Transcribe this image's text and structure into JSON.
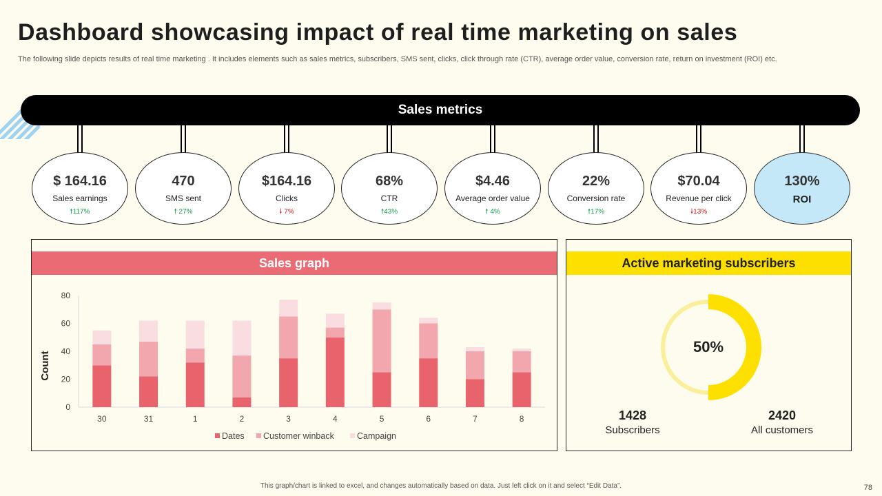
{
  "page": {
    "title": "Dashboard showcasing impact of real time marketing on sales",
    "subtitle": "The following slide depicts results of real time marketing . It includes elements such as sales metrics, subscribers, SMS sent, clicks, click through rate (CTR), average order value, conversion rate, return on investment (ROI) etc.",
    "footer": "This graph/chart is linked to excel, and changes automatically based on data. Just left click on it and select “Edit Data”.",
    "page_number": "78"
  },
  "metrics_header": "Sales metrics",
  "metrics": [
    {
      "value": "$ 164.16",
      "label": "Sales earnings",
      "change": "117%",
      "direction": "up"
    },
    {
      "value": "470",
      "label": "SMS sent",
      "change": "27%",
      "direction": "up"
    },
    {
      "value": "$164.16",
      "label": "Clicks",
      "change": "7%",
      "direction": "down"
    },
    {
      "value": "68%",
      "label": "CTR",
      "change": "43%",
      "direction": "up"
    },
    {
      "value": "$4.46",
      "label": "Average order value",
      "change": "4%",
      "direction": "up"
    },
    {
      "value": "22%",
      "label": "Conversion rate",
      "change": "17%",
      "direction": "up"
    },
    {
      "value": "$70.04",
      "label": "Revenue per click",
      "change": "13%",
      "direction": "down"
    }
  ],
  "roi": {
    "value": "130%",
    "label": "ROI"
  },
  "sales_graph_title": "Sales graph",
  "subscribers_title": "Active marketing subscribers",
  "subscribers": {
    "percent_label": "50%",
    "percent": 50,
    "subscribers_value": "1428",
    "subscribers_label": "Subscribers",
    "customers_value": "2420",
    "customers_label": "All customers"
  },
  "colors": {
    "dates": "#e8636c",
    "winback": "#f2a7ae",
    "campaign": "#f9dde0",
    "donut_fill": "#fde000",
    "donut_rest": "#fbef9a",
    "roi_bg": "#c5e8f8"
  },
  "chart_data": {
    "type": "bar",
    "stacked": true,
    "title": "Sales graph",
    "xlabel": "",
    "ylabel": "Count",
    "ylim": [
      0,
      80
    ],
    "yticks": [
      0,
      20,
      40,
      60,
      80
    ],
    "categories": [
      "30",
      "31",
      "1",
      "2",
      "3",
      "4",
      "5",
      "6",
      "7",
      "8"
    ],
    "series": [
      {
        "name": "Dates",
        "values": [
          30,
          22,
          32,
          7,
          35,
          50,
          25,
          35,
          20,
          25
        ]
      },
      {
        "name": "Customer winback",
        "values": [
          15,
          25,
          10,
          30,
          30,
          7,
          45,
          25,
          20,
          15
        ]
      },
      {
        "name": "Campaign",
        "values": [
          10,
          15,
          20,
          25,
          12,
          10,
          5,
          4,
          3,
          2
        ]
      }
    ],
    "legend": "bottom"
  }
}
